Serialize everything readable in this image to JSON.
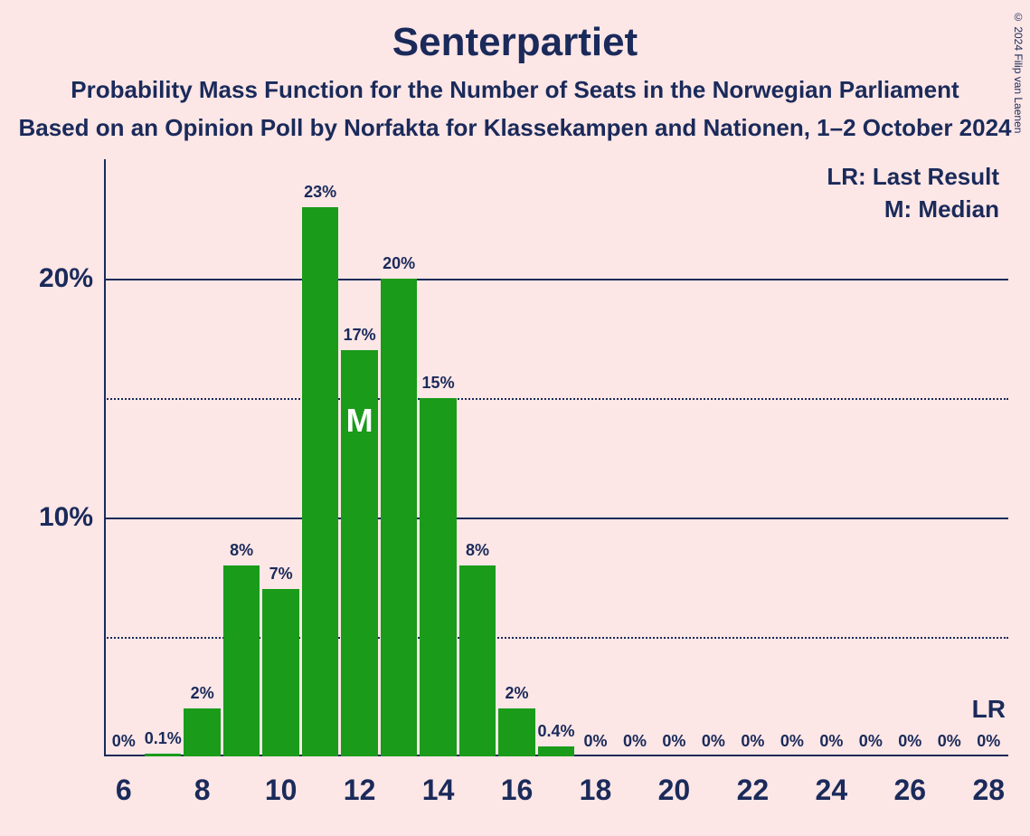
{
  "title": "Senterpartiet",
  "subtitle1": "Probability Mass Function for the Number of Seats in the Norwegian Parliament",
  "subtitle2": "Based on an Opinion Poll by Norfakta for Klassekampen and Nationen, 1–2 October 2024",
  "copyright": "© 2024 Filip van Laenen",
  "legend": {
    "lr": "LR: Last Result",
    "m": "M: Median"
  },
  "chart": {
    "type": "bar",
    "background_color": "#fce6e6",
    "bar_color": "#1a9b1a",
    "text_color": "#1a2a5a",
    "axis_color": "#1a2a5a",
    "grid_solid_color": "#1a2a5a",
    "grid_dot_color": "#1a2a5a",
    "median_text_color": "#ffffff",
    "title_fontsize": 44,
    "subtitle_fontsize": 26,
    "ylabel_fontsize": 30,
    "xlabel_fontsize": 32,
    "barlabel_fontsize": 18,
    "legend_fontsize": 26,
    "yrange": [
      0,
      25
    ],
    "ytick_major": [
      10,
      20
    ],
    "ytick_minor": [
      5,
      15
    ],
    "ylabels": {
      "10": "10%",
      "20": "20%"
    },
    "x_categories": [
      6,
      7,
      8,
      9,
      10,
      11,
      12,
      13,
      14,
      15,
      16,
      17,
      18,
      19,
      20,
      21,
      22,
      23,
      24,
      25,
      26,
      27,
      28
    ],
    "xlabels_shown": [
      6,
      8,
      10,
      12,
      14,
      16,
      18,
      20,
      22,
      24,
      26,
      28
    ],
    "bar_width_ratio": 0.93,
    "bars": [
      {
        "x": 6,
        "v": 0,
        "label": "0%"
      },
      {
        "x": 7,
        "v": 0.1,
        "label": "0.1%"
      },
      {
        "x": 8,
        "v": 2,
        "label": "2%"
      },
      {
        "x": 9,
        "v": 8,
        "label": "8%"
      },
      {
        "x": 10,
        "v": 7,
        "label": "7%"
      },
      {
        "x": 11,
        "v": 23,
        "label": "23%"
      },
      {
        "x": 12,
        "v": 17,
        "label": "17%",
        "median": true
      },
      {
        "x": 13,
        "v": 20,
        "label": "20%"
      },
      {
        "x": 14,
        "v": 15,
        "label": "15%"
      },
      {
        "x": 15,
        "v": 8,
        "label": "8%"
      },
      {
        "x": 16,
        "v": 2,
        "label": "2%"
      },
      {
        "x": 17,
        "v": 0.4,
        "label": "0.4%"
      },
      {
        "x": 18,
        "v": 0,
        "label": "0%"
      },
      {
        "x": 19,
        "v": 0,
        "label": "0%"
      },
      {
        "x": 20,
        "v": 0,
        "label": "0%"
      },
      {
        "x": 21,
        "v": 0,
        "label": "0%"
      },
      {
        "x": 22,
        "v": 0,
        "label": "0%"
      },
      {
        "x": 23,
        "v": 0,
        "label": "0%"
      },
      {
        "x": 24,
        "v": 0,
        "label": "0%"
      },
      {
        "x": 25,
        "v": 0,
        "label": "0%"
      },
      {
        "x": 26,
        "v": 0,
        "label": "0%"
      },
      {
        "x": 27,
        "v": 0,
        "label": "0%"
      },
      {
        "x": 28,
        "v": 0,
        "label": "0%"
      }
    ],
    "lr_at": 28,
    "lr_text": "LR",
    "median_text": "M"
  }
}
